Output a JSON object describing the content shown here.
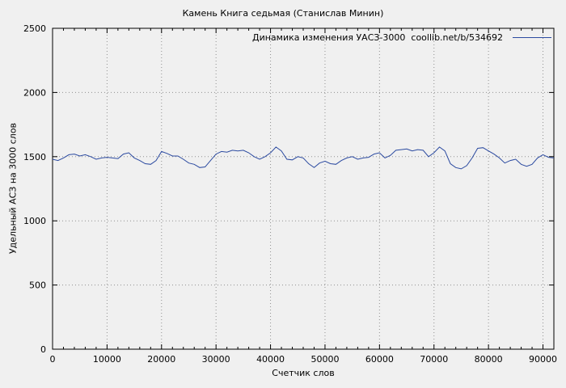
{
  "page": {
    "background": "#f0f0f0"
  },
  "chart_data": {
    "type": "line",
    "title": "Камень Книга седьмая (Станислав Минин)",
    "legend_label": "Динамика изменения УАСЗ-3000  coollib.net/b/534692",
    "xlabel": "Счетчик слов",
    "ylabel": "Удельный АСЗ на 3000 слов",
    "xlim": [
      0,
      92000
    ],
    "ylim": [
      0,
      2500
    ],
    "xticks": [
      0,
      10000,
      20000,
      30000,
      40000,
      50000,
      60000,
      70000,
      80000,
      90000
    ],
    "x_minor_step": 2000,
    "yticks": [
      0,
      500,
      1000,
      1500,
      2000,
      2500
    ],
    "grid": true,
    "grid_style": "dotted",
    "legend_position": "top-right-inside",
    "line_color": "#2b4aa0",
    "series": [
      {
        "name": "Динамика изменения УАСЗ-3000",
        "x": [
          0,
          1000,
          2000,
          3000,
          4000,
          5000,
          6000,
          7000,
          8000,
          9000,
          10000,
          11000,
          12000,
          13000,
          14000,
          15000,
          16000,
          17000,
          18000,
          19000,
          20000,
          21000,
          22000,
          23000,
          24000,
          25000,
          26000,
          27000,
          28000,
          29000,
          30000,
          31000,
          32000,
          33000,
          34000,
          35000,
          36000,
          37000,
          38000,
          39000,
          40000,
          41000,
          42000,
          43000,
          44000,
          45000,
          46000,
          47000,
          48000,
          49000,
          50000,
          51000,
          52000,
          53000,
          54000,
          55000,
          56000,
          57000,
          58000,
          59000,
          60000,
          61000,
          62000,
          63000,
          64000,
          65000,
          66000,
          67000,
          68000,
          69000,
          70000,
          71000,
          72000,
          73000,
          74000,
          75000,
          76000,
          77000,
          78000,
          79000,
          80000,
          81000,
          82000,
          83000,
          84000,
          85000,
          86000,
          87000,
          88000,
          89000,
          90000,
          91000,
          92000
        ],
        "y": [
          1480,
          1470,
          1490,
          1515,
          1520,
          1505,
          1515,
          1500,
          1480,
          1490,
          1495,
          1490,
          1485,
          1520,
          1530,
          1490,
          1470,
          1445,
          1440,
          1470,
          1540,
          1525,
          1505,
          1505,
          1480,
          1450,
          1440,
          1415,
          1420,
          1470,
          1520,
          1540,
          1535,
          1550,
          1545,
          1550,
          1530,
          1500,
          1480,
          1500,
          1530,
          1575,
          1545,
          1480,
          1475,
          1500,
          1490,
          1445,
          1415,
          1450,
          1465,
          1445,
          1440,
          1470,
          1490,
          1500,
          1480,
          1490,
          1495,
          1520,
          1530,
          1490,
          1510,
          1550,
          1555,
          1560,
          1545,
          1555,
          1550,
          1500,
          1530,
          1575,
          1545,
          1445,
          1415,
          1405,
          1430,
          1490,
          1565,
          1570,
          1545,
          1520,
          1490,
          1450,
          1470,
          1480,
          1440,
          1425,
          1440,
          1490,
          1515,
          1495,
          1490
        ]
      }
    ]
  }
}
